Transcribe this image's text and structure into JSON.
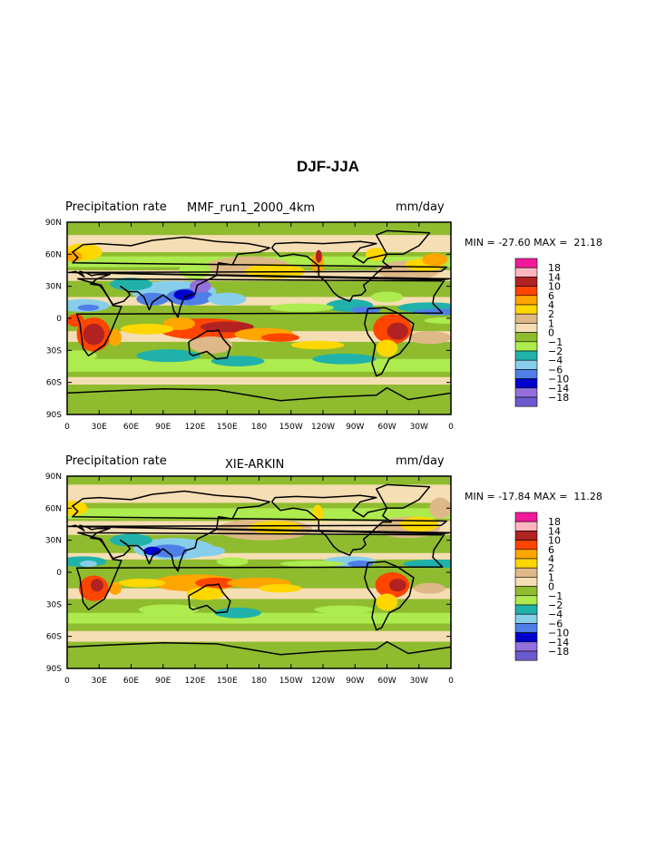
{
  "title": "DJF-JJA",
  "panels": [
    {
      "variable": "Precipitation rate",
      "case": "MMF_run1_2000_4km",
      "units": "mm/day",
      "min_label": "MIN = ",
      "min_value": "-27.60",
      "max_label": "MAX = ",
      "max_value": "21.18"
    },
    {
      "variable": "Precipitation rate",
      "case": "XIE-ARKIN",
      "units": "mm/day",
      "min_label": "MIN = ",
      "min_value": "-17.84",
      "max_label": "MAX = ",
      "max_value": "11.28"
    }
  ],
  "x_ticks": [
    "0",
    "30E",
    "60E",
    "90E",
    "120E",
    "150E",
    "180",
    "150W",
    "120W",
    "90W",
    "60W",
    "30W",
    "0"
  ],
  "y_ticks": [
    "90N",
    "60N",
    "30N",
    "0",
    "30S",
    "60S",
    "90S"
  ],
  "legend": {
    "labels": [
      "18",
      "14",
      "10",
      "6",
      "4",
      "2",
      "1",
      "0",
      "−1",
      "−2",
      "−4",
      "−6",
      "−10",
      "−14",
      "−18"
    ],
    "colors": [
      "#f21a9a",
      "#ffb6c1",
      "#b22222",
      "#ff4500",
      "#ffa500",
      "#ffd700",
      "#deb887",
      "#f5deb3",
      "#8fbc2f",
      "#adeb4f",
      "#20b2aa",
      "#87ceeb",
      "#4f7fe6",
      "#0000cd",
      "#9370db",
      "#6a5acd"
    ]
  }
}
